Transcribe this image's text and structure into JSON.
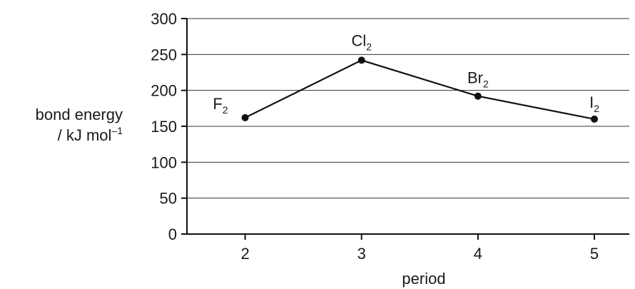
{
  "chart_data": {
    "type": "line",
    "xlabel": "period",
    "ylabel_line1": "bond energy",
    "ylabel_unit": "/ kJ mol",
    "ylabel_unit_exp": "–1",
    "x_ticks": [
      2,
      3,
      4,
      5
    ],
    "y_ticks": [
      0,
      50,
      100,
      150,
      200,
      250,
      300
    ],
    "xlim": [
      1.5,
      5.3
    ],
    "ylim": [
      0,
      300
    ],
    "grid": "horizontal",
    "series": [
      {
        "points": [
          {
            "x": 2,
            "y": 162,
            "label": "F",
            "sub": "2"
          },
          {
            "x": 3,
            "y": 242,
            "label": "Cl",
            "sub": "2"
          },
          {
            "x": 4,
            "y": 192,
            "label": "Br",
            "sub": "2"
          },
          {
            "x": 5,
            "y": 160,
            "label": "I",
            "sub": "2"
          }
        ]
      }
    ]
  }
}
